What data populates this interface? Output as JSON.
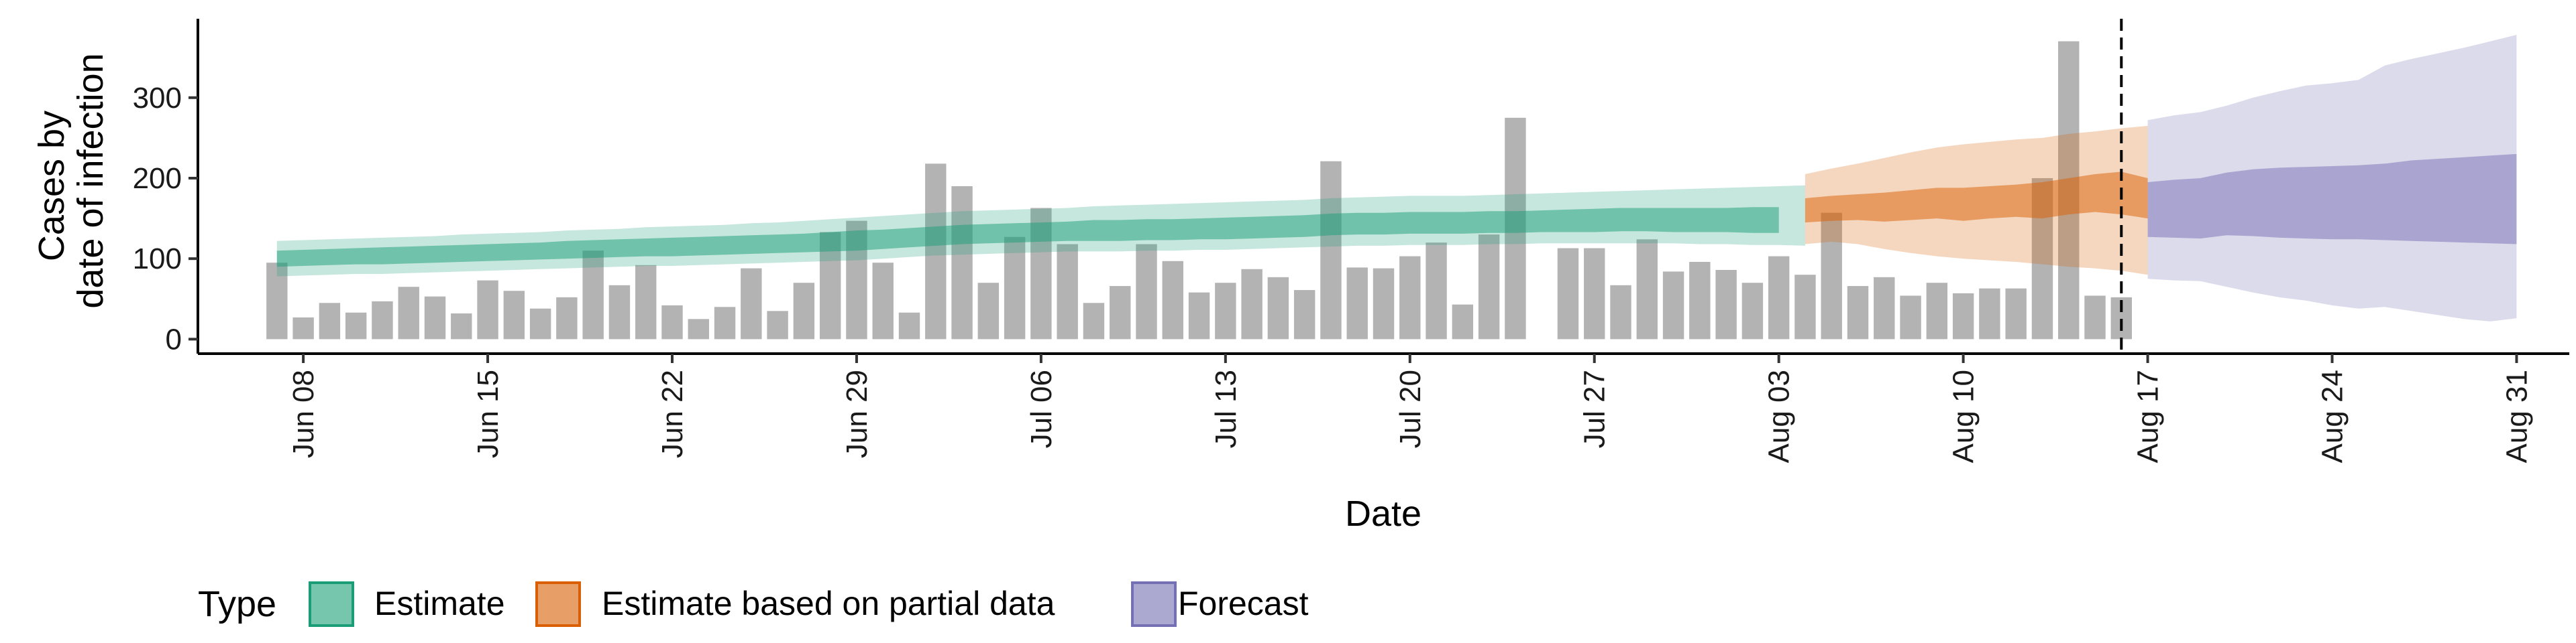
{
  "chart_data": {
    "type": "bar",
    "xlabel": "Date",
    "ylabel_lines": [
      "Cases by",
      "date of infection"
    ],
    "ylim": [
      -18,
      398
    ],
    "y_ticks": [
      0,
      100,
      200,
      300
    ],
    "x_range": [
      "2021-06-04",
      "2021-09-02"
    ],
    "x_ticks": [
      {
        "date": "2021-06-08",
        "label": "Jun 08"
      },
      {
        "date": "2021-06-15",
        "label": "Jun 15"
      },
      {
        "date": "2021-06-22",
        "label": "Jun 22"
      },
      {
        "date": "2021-06-29",
        "label": "Jun 29"
      },
      {
        "date": "2021-07-06",
        "label": "Jul 06"
      },
      {
        "date": "2021-07-13",
        "label": "Jul 13"
      },
      {
        "date": "2021-07-20",
        "label": "Jul 20"
      },
      {
        "date": "2021-07-27",
        "label": "Jul 27"
      },
      {
        "date": "2021-08-03",
        "label": "Aug 03"
      },
      {
        "date": "2021-08-10",
        "label": "Aug 10"
      },
      {
        "date": "2021-08-17",
        "label": "Aug 17"
      },
      {
        "date": "2021-08-24",
        "label": "Aug 24"
      },
      {
        "date": "2021-08-31",
        "label": "Aug 31"
      }
    ],
    "vline_date": "2021-08-16",
    "bar_color": "#b3b3b3",
    "reported_cases": {
      "start_date": "2021-06-07",
      "values": [
        95,
        27,
        45,
        33,
        47,
        65,
        53,
        32,
        73,
        60,
        38,
        52,
        110,
        67,
        92,
        42,
        25,
        40,
        88,
        35,
        70,
        133,
        147,
        95,
        33,
        218,
        190,
        70,
        127,
        163,
        118,
        45,
        66,
        118,
        97,
        58,
        70,
        87,
        77,
        61,
        221,
        89,
        88,
        103,
        120,
        43,
        130,
        275,
        null,
        113,
        113,
        67,
        124,
        84,
        96,
        86,
        70,
        103,
        80,
        157,
        66,
        77,
        54,
        70,
        57,
        63,
        63,
        200,
        370,
        54,
        52
      ]
    },
    "series": [
      {
        "name": "Estimate",
        "color": "#1b9e77",
        "start_date": "2021-06-07",
        "mid": [
          100,
          100,
          101,
          102,
          103,
          104,
          105,
          106,
          107,
          108,
          109,
          111,
          112,
          113,
          114,
          114,
          115,
          116,
          117,
          118,
          119,
          121,
          122,
          124,
          126,
          128,
          130,
          131,
          132,
          133,
          134,
          135,
          135,
          136,
          136,
          137,
          137,
          138,
          139,
          140,
          142,
          143,
          143,
          144,
          144,
          144,
          145,
          145,
          146,
          147,
          147,
          148,
          148,
          148,
          148,
          148,
          148,
          148
        ],
        "q50": [
          [
            90,
            110
          ],
          [
            91,
            111
          ],
          [
            92,
            112
          ],
          [
            93,
            113
          ],
          [
            93,
            114
          ],
          [
            94,
            115
          ],
          [
            95,
            116
          ],
          [
            96,
            117
          ],
          [
            97,
            118
          ],
          [
            98,
            119
          ],
          [
            99,
            120
          ],
          [
            100,
            122
          ],
          [
            101,
            123
          ],
          [
            102,
            124
          ],
          [
            103,
            125
          ],
          [
            103,
            126
          ],
          [
            104,
            127
          ],
          [
            105,
            128
          ],
          [
            106,
            129
          ],
          [
            107,
            130
          ],
          [
            108,
            131
          ],
          [
            109,
            133
          ],
          [
            110,
            135
          ],
          [
            112,
            136
          ],
          [
            114,
            138
          ],
          [
            116,
            140
          ],
          [
            118,
            142
          ],
          [
            119,
            143
          ],
          [
            120,
            144
          ],
          [
            121,
            145
          ],
          [
            122,
            146
          ],
          [
            122,
            148
          ],
          [
            122,
            148
          ],
          [
            123,
            149
          ],
          [
            123,
            149
          ],
          [
            124,
            150
          ],
          [
            124,
            151
          ],
          [
            125,
            152
          ],
          [
            126,
            153
          ],
          [
            127,
            154
          ],
          [
            129,
            156
          ],
          [
            130,
            157
          ],
          [
            130,
            157
          ],
          [
            131,
            158
          ],
          [
            131,
            158
          ],
          [
            131,
            158
          ],
          [
            132,
            159
          ],
          [
            132,
            159
          ],
          [
            133,
            160
          ],
          [
            133,
            161
          ],
          [
            133,
            162
          ],
          [
            134,
            163
          ],
          [
            134,
            163
          ],
          [
            133,
            163
          ],
          [
            133,
            163
          ],
          [
            133,
            163
          ],
          [
            132,
            164
          ],
          [
            132,
            164
          ]
        ],
        "q90": [
          [
            78,
            122
          ],
          [
            79,
            123
          ],
          [
            80,
            124
          ],
          [
            81,
            125
          ],
          [
            81,
            126
          ],
          [
            82,
            127
          ],
          [
            83,
            128
          ],
          [
            84,
            130
          ],
          [
            85,
            131
          ],
          [
            86,
            132
          ],
          [
            87,
            133
          ],
          [
            88,
            135
          ],
          [
            89,
            136
          ],
          [
            90,
            137
          ],
          [
            91,
            139
          ],
          [
            91,
            140
          ],
          [
            92,
            141
          ],
          [
            93,
            142
          ],
          [
            94,
            144
          ],
          [
            95,
            145
          ],
          [
            96,
            147
          ],
          [
            97,
            149
          ],
          [
            98,
            151
          ],
          [
            100,
            153
          ],
          [
            102,
            155
          ],
          [
            104,
            157
          ],
          [
            105,
            159
          ],
          [
            106,
            160
          ],
          [
            107,
            161
          ],
          [
            108,
            162
          ],
          [
            109,
            163
          ],
          [
            109,
            165
          ],
          [
            109,
            166
          ],
          [
            110,
            167
          ],
          [
            110,
            168
          ],
          [
            111,
            169
          ],
          [
            111,
            170
          ],
          [
            112,
            171
          ],
          [
            113,
            172
          ],
          [
            114,
            173
          ],
          [
            115,
            175
          ],
          [
            116,
            176
          ],
          [
            116,
            177
          ],
          [
            117,
            178
          ],
          [
            117,
            178
          ],
          [
            117,
            178
          ],
          [
            118,
            179
          ],
          [
            118,
            180
          ],
          [
            119,
            181
          ],
          [
            119,
            182
          ],
          [
            119,
            183
          ],
          [
            119,
            184
          ],
          [
            119,
            185
          ],
          [
            119,
            186
          ],
          [
            118,
            187
          ],
          [
            118,
            188
          ],
          [
            117,
            189
          ],
          [
            117,
            190
          ],
          [
            116,
            191
          ]
        ]
      },
      {
        "name": "Estimate based on partial data",
        "color": "#d95f02",
        "start_date": "2021-08-04",
        "mid": [
          170,
          172,
          173,
          175,
          176,
          178,
          180,
          181,
          182,
          184,
          186,
          189,
          190,
          184
        ],
        "q50": [
          [
            145,
            175
          ],
          [
            147,
            178
          ],
          [
            148,
            180
          ],
          [
            146,
            182
          ],
          [
            148,
            185
          ],
          [
            150,
            188
          ],
          [
            147,
            188
          ],
          [
            150,
            190
          ],
          [
            152,
            192
          ],
          [
            150,
            195
          ],
          [
            155,
            200
          ],
          [
            158,
            205
          ],
          [
            155,
            208
          ],
          [
            150,
            200
          ]
        ],
        "q90": [
          [
            118,
            205
          ],
          [
            121,
            212
          ],
          [
            118,
            218
          ],
          [
            112,
            225
          ],
          [
            107,
            232
          ],
          [
            103,
            238
          ],
          [
            100,
            242
          ],
          [
            98,
            245
          ],
          [
            96,
            248
          ],
          [
            93,
            250
          ],
          [
            90,
            255
          ],
          [
            88,
            258
          ],
          [
            85,
            262
          ],
          [
            80,
            265
          ]
        ]
      },
      {
        "name": "Forecast",
        "color": "#7570b3",
        "start_date": "2021-08-17",
        "mid": [
          160,
          162,
          164,
          167,
          170,
          172,
          174,
          175,
          176,
          177,
          178,
          178,
          179,
          179,
          179
        ],
        "q50": [
          [
            127,
            195
          ],
          [
            126,
            198
          ],
          [
            125,
            200
          ],
          [
            129,
            207
          ],
          [
            128,
            211
          ],
          [
            126,
            213
          ],
          [
            125,
            214
          ],
          [
            124,
            215
          ],
          [
            124,
            216
          ],
          [
            123,
            218
          ],
          [
            122,
            222
          ],
          [
            121,
            224
          ],
          [
            120,
            226
          ],
          [
            119,
            228
          ],
          [
            118,
            230
          ]
        ],
        "q90": [
          [
            75,
            272
          ],
          [
            73,
            278
          ],
          [
            72,
            282
          ],
          [
            65,
            290
          ],
          [
            58,
            300
          ],
          [
            52,
            308
          ],
          [
            48,
            315
          ],
          [
            42,
            318
          ],
          [
            38,
            322
          ],
          [
            40,
            340
          ],
          [
            35,
            348
          ],
          [
            30,
            355
          ],
          [
            25,
            362
          ],
          [
            22,
            370
          ],
          [
            26,
            378
          ]
        ]
      }
    ],
    "legend": {
      "title": "Type",
      "position": "bottom",
      "items": [
        "Estimate",
        "Estimate based on partial data",
        "Forecast"
      ]
    },
    "grid": false
  }
}
